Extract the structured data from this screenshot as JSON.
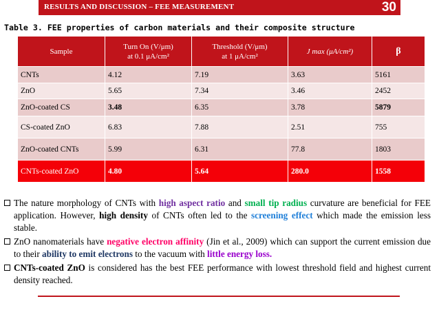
{
  "header": {
    "title": "RESULTS AND DISCUSSION – FEE MEASUREMENT",
    "page_number": "30"
  },
  "caption": "Table 3. FEE properties of carbon materials and their composite structure",
  "table": {
    "headers": [
      [
        "Sample"
      ],
      [
        "Turn On (V/μm)",
        "at 0.1 μA/cm²"
      ],
      [
        "Threshold (V/μm)",
        "at 1 μA/cm²"
      ],
      [
        "J max (μA/cm²)"
      ],
      [
        "β"
      ]
    ],
    "rows": [
      [
        "CNTs",
        "4.12",
        "7.19",
        "3.63",
        "5161"
      ],
      [
        "ZnO",
        "5.65",
        "7.34",
        "3.46",
        "2452"
      ],
      [
        "ZnO-coated CS",
        "3.48",
        "6.35",
        "3.78",
        "5879"
      ],
      [
        "CS-coated ZnO",
        "6.83",
        "7.88",
        "2.51",
        "755"
      ],
      [
        "ZnO-coated CNTs",
        "5.99",
        "6.31",
        "77.8",
        "1803"
      ],
      [
        "CNTs-coated ZnO",
        "4.80",
        "5.64",
        "280.0",
        "1558"
      ]
    ]
  },
  "bullets": {
    "b1": {
      "t1": "The nature morphology of CNTs with ",
      "k1": "high aspect ratio",
      "t2": " and ",
      "k2": "small tip radius",
      "t3": " curvature are beneficial for FEE application. However, ",
      "k3": "high density",
      "t4": " of CNTs often led to the ",
      "k4": "screening effect",
      "t5": " which made the emission less stable."
    },
    "b2": {
      "t1": "ZnO nanomaterials have ",
      "k1": "negative electron affinity",
      "t2": " (Jin et al., 2009) which can support the current emission due to their ",
      "k2": "ability to emit electrons",
      "t3": " to the vacuum with ",
      "k3": "little energy loss.",
      "t4": ""
    },
    "b3": {
      "k1": "CNTs-coated ZnO",
      "t1": " is considered has the best FEE performance with lowest threshold field and highest current density reached."
    }
  },
  "colors": {
    "accent": "#c0141b",
    "highlight_row": "#f40008",
    "row_odd": "#e9cbcb",
    "row_even": "#f5e6e6"
  }
}
